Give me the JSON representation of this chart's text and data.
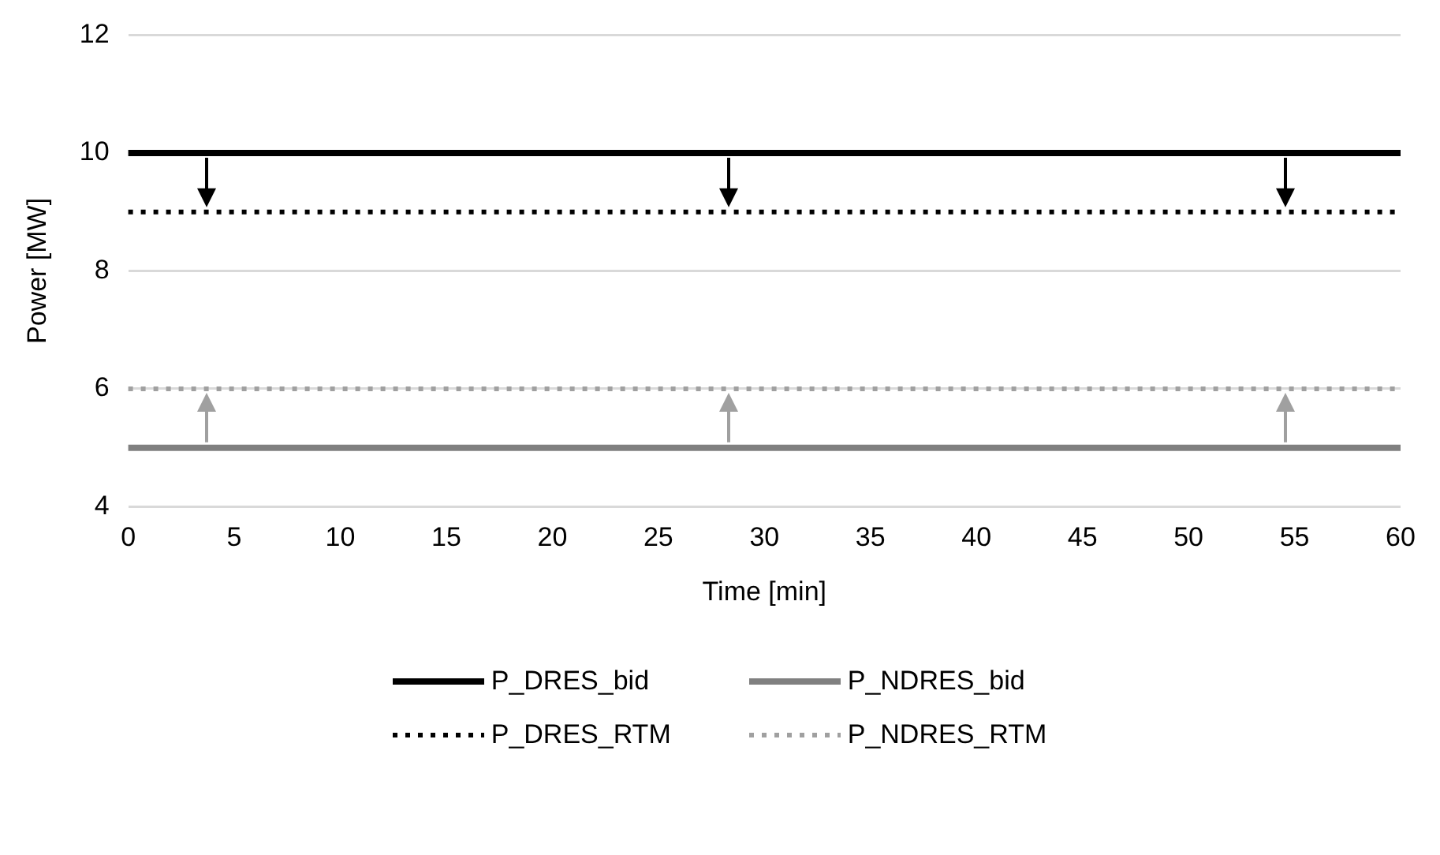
{
  "chart_data": {
    "type": "line",
    "xlabel": "Time [min]",
    "ylabel": "Power [MW]",
    "categories": [
      "0",
      "5",
      "10",
      "15",
      "20",
      "25",
      "30",
      "35",
      "40",
      "45",
      "50",
      "55",
      "60"
    ],
    "ylim": [
      4,
      12
    ],
    "yticks": [
      4,
      6,
      8,
      10,
      12
    ],
    "grid": "y",
    "legend": "bottom",
    "marker": "none",
    "series": [
      {
        "name": "P_DRES_bid",
        "color": "#000000",
        "values": [
          10,
          10,
          10,
          10,
          10,
          10,
          10,
          10,
          10,
          10,
          10,
          10,
          10
        ],
        "line_style": "solid"
      },
      {
        "name": "P_NDRES_bid",
        "color": "#808080",
        "values": [
          5,
          5,
          5,
          5,
          5,
          5,
          5,
          5,
          5,
          5,
          5,
          5,
          5
        ],
        "line_style": "solid"
      },
      {
        "name": "P_DRES_RTM",
        "color": "#000000",
        "values": [
          9,
          9,
          9,
          9,
          9,
          9,
          9,
          9,
          9,
          9,
          9,
          9,
          9
        ],
        "line_style": "dotted"
      },
      {
        "name": "P_NDRES_RTM",
        "color": "#a0a0a0",
        "values": [
          6,
          6,
          6,
          6,
          6,
          6,
          6,
          6,
          6,
          6,
          6,
          6,
          6
        ],
        "line_style": "dotted"
      }
    ]
  }
}
